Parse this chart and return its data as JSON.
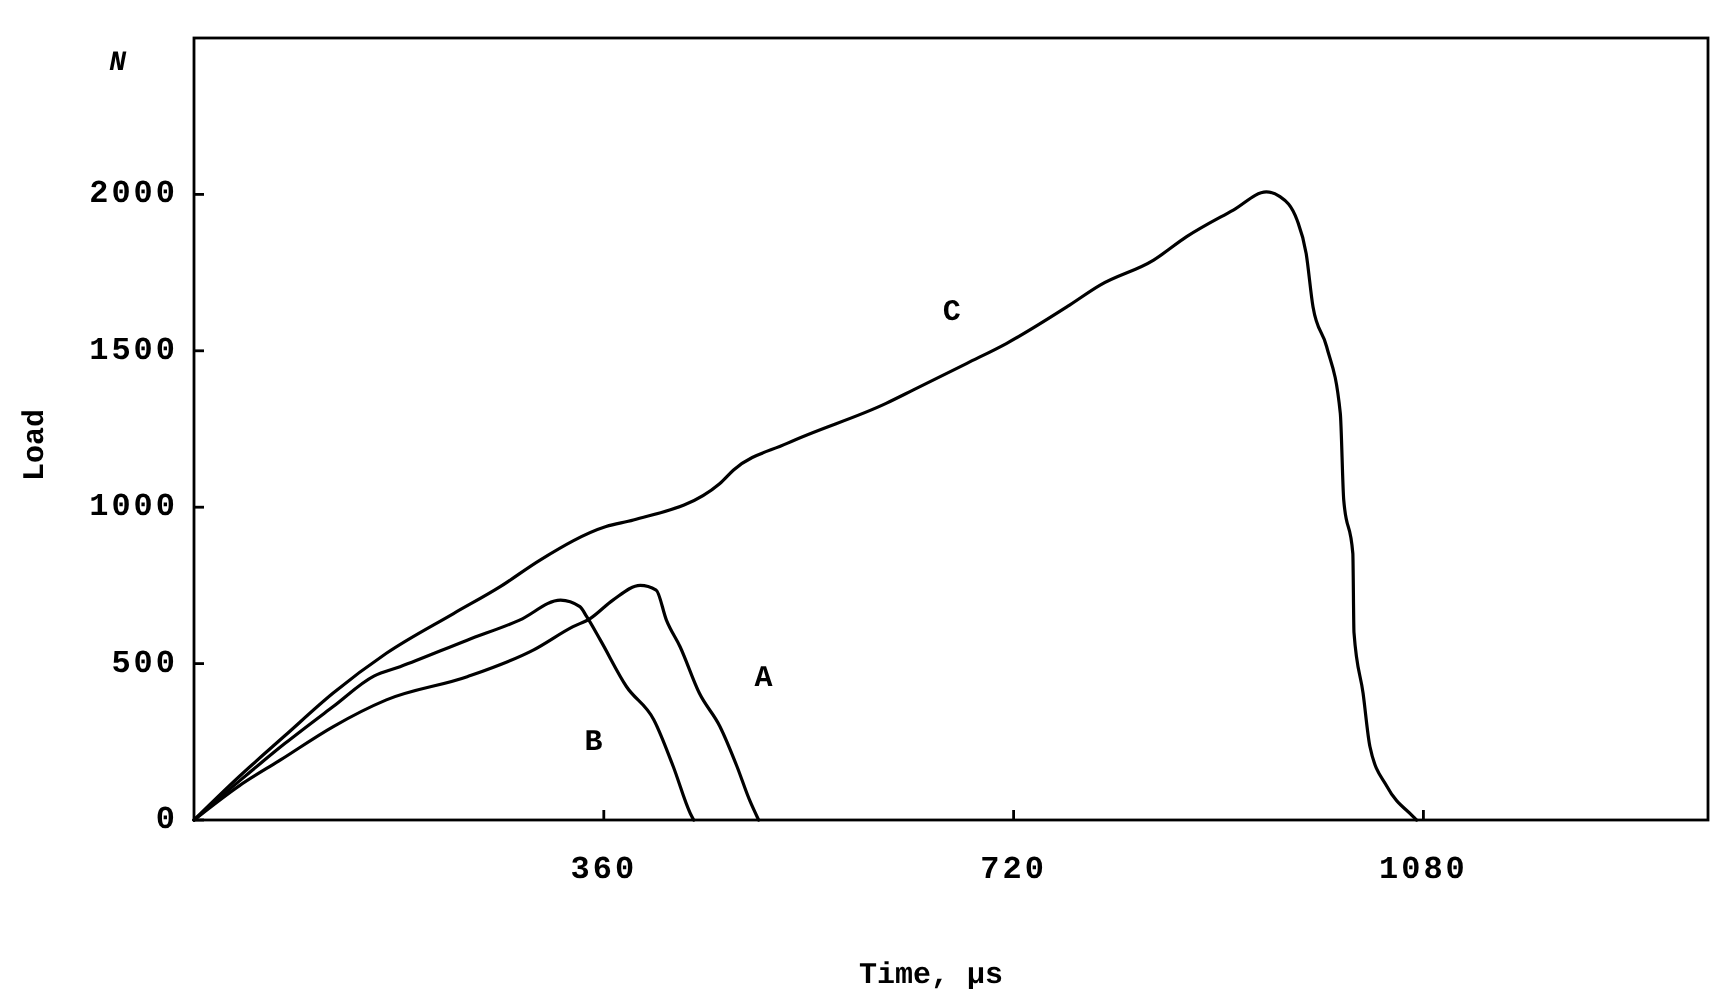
{
  "chart_data": {
    "type": "line",
    "xlabel": "Time, µs",
    "ylabel": "Load",
    "annotations": [
      "N"
    ],
    "xlim": [
      0,
      1330
    ],
    "ylim": [
      0,
      2500
    ],
    "xticks": [
      360,
      720,
      1080
    ],
    "yticks": [
      0,
      500,
      1000,
      1500,
      2000
    ],
    "series": [
      {
        "name": "A",
        "color": "#000000",
        "x": [
          0,
          40,
          76,
          122,
          169,
          240,
          298,
          333,
          348,
          368,
          392,
          406,
          415,
          427,
          444,
          462,
          477,
          488,
          496
        ],
        "values": [
          0,
          110,
          192,
          298,
          384,
          458,
          543,
          618,
          644,
          703,
          750,
          735,
          639,
          554,
          405,
          299,
          171,
          64,
          0
        ]
      },
      {
        "name": "B",
        "color": "#000000",
        "x": [
          0,
          40,
          80,
          122,
          158,
          181,
          240,
          286,
          322,
          339,
          345,
          357,
          380,
          404,
          421,
          436,
          439
        ],
        "values": [
          0,
          125,
          245,
          362,
          460,
          490,
          575,
          639,
          703,
          682,
          650,
          575,
          426,
          320,
          171,
          21,
          0
        ]
      },
      {
        "name": "C",
        "color": "#000000",
        "x": [
          0,
          40,
          80,
          122,
          169,
          228,
          269,
          304,
          362,
          386,
          462,
          474,
          521,
          608,
          632,
          679,
          714,
          767,
          796,
          843,
          872,
          913,
          942,
          954,
          969,
          977,
          983,
          995,
          1007,
          1010,
          1018,
          1019,
          1027,
          1033,
          1048,
          1071,
          1074
        ],
        "values": [
          0,
          140,
          270,
          405,
          533,
          660,
          746,
          831,
          938,
          959,
          1076,
          1119,
          1204,
          1332,
          1375,
          1460,
          1524,
          1641,
          1710,
          1790,
          1865,
          1950,
          2008,
          1993,
          1918,
          1811,
          1641,
          1513,
          1300,
          1023,
          852,
          600,
          405,
          235,
          107,
          11,
          0
        ]
      }
    ]
  }
}
